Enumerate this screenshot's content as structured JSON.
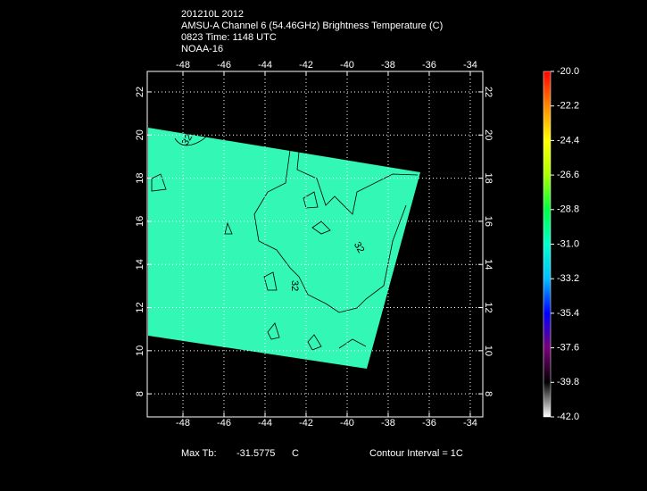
{
  "chart_data": {
    "type": "map",
    "title_lines": [
      "201210L 2012",
      "AMSU-A Channel 6 (54.46GHz) Brightness Temperature (C)",
      "0823 Time: 1148 UTC",
      "NOAA-16"
    ],
    "xlim": [
      -49.74,
      -33.39
    ],
    "ylim": [
      6.93,
      22.95
    ],
    "xticks": [
      -48,
      -46,
      -44,
      -42,
      -40,
      -38,
      -36,
      -34
    ],
    "yticks": [
      8,
      10,
      12,
      14,
      16,
      18,
      20,
      22
    ],
    "grid": true,
    "contour_labels": [
      32,
      32,
      32
    ],
    "colorbar": {
      "clim": [
        -42,
        -20
      ],
      "colors": [
        "#ffffff",
        "#000000",
        "#7a007a",
        "#0000ff",
        "#00bfff",
        "#00ffcc",
        "#00ff44",
        "#aaff00",
        "#ffff00",
        "#ff8800",
        "#ff0000"
      ],
      "ticks": [
        {
          "value": -20,
          "label": "-20.0"
        },
        {
          "value": -22.2,
          "label": "-22.2"
        },
        {
          "value": -24.4,
          "label": "-24.4"
        },
        {
          "value": -26.6,
          "label": "-26.6"
        },
        {
          "value": -28.8,
          "label": "-28.8"
        },
        {
          "value": -31,
          "label": "-31.0"
        },
        {
          "value": -33.2,
          "label": "-33.2"
        },
        {
          "value": -35.4,
          "label": "-35.4"
        },
        {
          "value": -37.6,
          "label": "-37.6"
        },
        {
          "value": -39.8,
          "label": "-39.8"
        },
        {
          "value": -42,
          "label": "-42.0"
        }
      ]
    },
    "footer": {
      "max_label": "Max Tb:",
      "max_value": -31.5775,
      "unit": "C",
      "interval": "Contour Interval = 1C"
    }
  }
}
